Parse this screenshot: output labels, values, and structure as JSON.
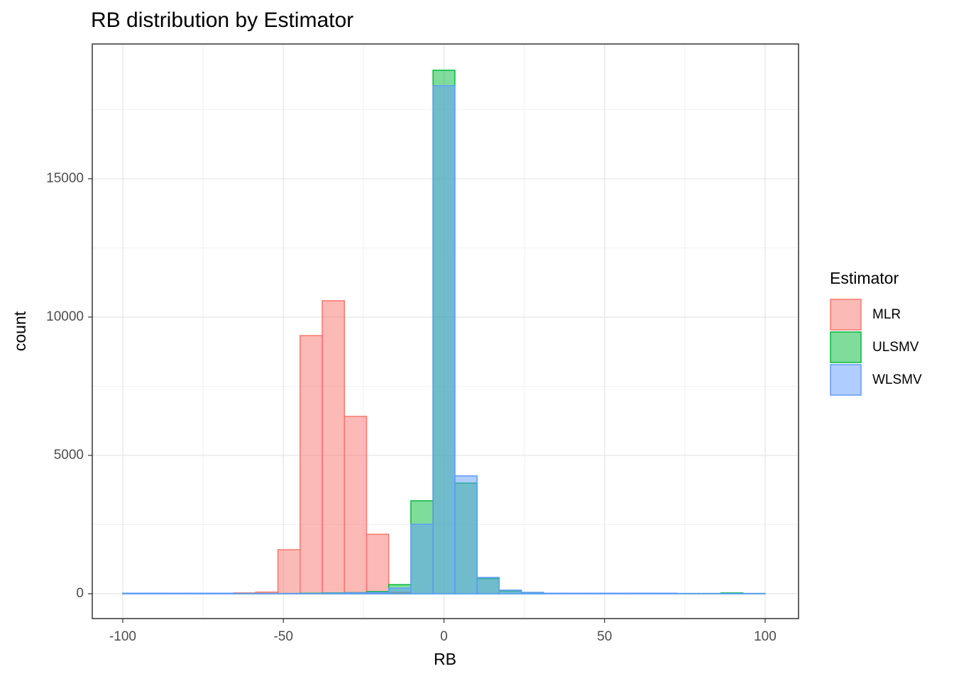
{
  "chart_data": {
    "type": "histogram",
    "title": "RB distribution by Estimator",
    "x_label": "RB",
    "y_label": "count",
    "legend_title": "Estimator",
    "legend": "right",
    "grid": true,
    "bins": [
      -100,
      -93.1,
      -86.2,
      -79.3,
      -72.4,
      -65.5,
      -58.6,
      -51.7,
      -44.8,
      -37.9,
      -31.0,
      -24.1,
      -17.2,
      -10.3,
      -3.4,
      3.4,
      10.3,
      17.2,
      24.1,
      31.0,
      37.9,
      44.8,
      51.7,
      58.6,
      65.5,
      72.4,
      79.3,
      86.2,
      93.1,
      100
    ],
    "series": [
      {
        "name": "MLR",
        "color": "#F8766D",
        "values": [
          0,
          0,
          0,
          0,
          0,
          30,
          60,
          1590,
          9330,
          10590,
          6410,
          2150,
          50,
          0,
          0,
          0,
          0,
          0,
          0,
          0,
          0,
          0,
          0,
          0,
          0,
          0,
          0,
          0,
          0
        ]
      },
      {
        "name": "ULSMV",
        "color": "#00BA38",
        "values": [
          20,
          20,
          20,
          20,
          20,
          10,
          10,
          10,
          20,
          30,
          40,
          80,
          330,
          3360,
          18920,
          4000,
          550,
          100,
          40,
          20,
          20,
          20,
          20,
          20,
          20,
          10,
          10,
          30,
          10
        ]
      },
      {
        "name": "WLSMV",
        "color": "#619CFF",
        "values": [
          20,
          20,
          20,
          20,
          20,
          10,
          10,
          10,
          10,
          20,
          30,
          50,
          200,
          2510,
          18360,
          4260,
          590,
          130,
          50,
          20,
          20,
          20,
          20,
          20,
          20,
          10,
          10,
          10,
          10
        ]
      }
    ],
    "xlim": [
      -109.5,
      110.4
    ],
    "xticks": [
      -100,
      -50,
      0,
      50,
      100
    ],
    "ylim": [
      -897,
      19870
    ],
    "yticks": [
      0,
      5000,
      10000,
      15000
    ]
  }
}
